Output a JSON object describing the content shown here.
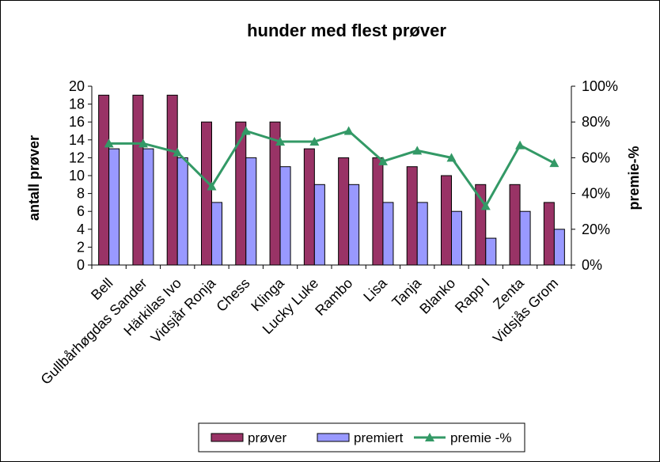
{
  "chart_data": {
    "type": "bar",
    "title": "hunder med flest prøver",
    "ylabel": "antall prøver",
    "y2label": "premie-%",
    "ylim": [
      0,
      20
    ],
    "y2lim": [
      0,
      1
    ],
    "yticks": [
      "0",
      "2",
      "4",
      "6",
      "8",
      "10",
      "12",
      "14",
      "16",
      "18",
      "20"
    ],
    "y2ticks": [
      "0%",
      "20%",
      "40%",
      "60%",
      "80%",
      "100%"
    ],
    "grid": false,
    "legend_position": "bottom",
    "categories": [
      "Bell",
      "Gullbårhøgdas Sander",
      "Härkilas Ivo",
      "Vidsjår Ronja",
      "Chess",
      "Klinga",
      "Lucky Luke",
      "Rambo",
      "Lisa",
      "Tanja",
      "Blanko",
      "Rapp I",
      "Zenta",
      "Vidsjås Grom"
    ],
    "series": [
      {
        "name": "prøver",
        "type": "bar",
        "axis": "left",
        "color": "#993366",
        "values": [
          19,
          19,
          19,
          16,
          16,
          16,
          13,
          12,
          12,
          11,
          10,
          9,
          9,
          7
        ]
      },
      {
        "name": "premiert",
        "type": "bar",
        "axis": "left",
        "color": "#9999ff",
        "values": [
          13,
          13,
          12,
          7,
          12,
          11,
          9,
          9,
          7,
          7,
          6,
          3,
          6,
          4
        ]
      },
      {
        "name": "premie -%",
        "type": "line",
        "axis": "right",
        "color": "#339966",
        "values": [
          0.68,
          0.68,
          0.63,
          0.44,
          0.75,
          0.69,
          0.69,
          0.75,
          0.58,
          0.64,
          0.6,
          0.33,
          0.67,
          0.57
        ]
      }
    ]
  }
}
